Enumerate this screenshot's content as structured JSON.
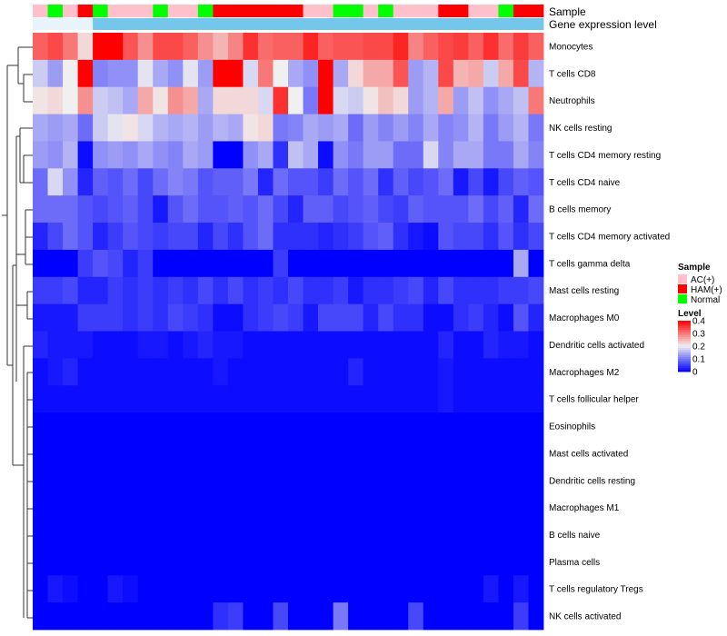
{
  "chart_data": {
    "type": "heatmap",
    "title": "",
    "rows": [
      "Monocytes",
      "T cells CD8",
      "Neutrophils",
      "NK cells resting",
      "T cells CD4 memory resting",
      "T cells CD4 naive",
      "B cells memory",
      "T cells CD4 memory activated",
      "T cells gamma delta",
      "Mast cells resting",
      "Macrophages M0",
      "Dendritic cells activated",
      "Macrophages M2",
      "T cells follicular helper",
      "Eosinophils",
      "Mast cells activated",
      "Dendritic cells resting",
      "Macrophages M1",
      "B cells naive",
      "Plasma cells",
      "T cells regulatory  Tregs",
      "NK cells activated"
    ],
    "column_annotations": [
      {
        "name": "Sample",
        "values": [
          "AC(+)",
          "Normal",
          "AC(+)",
          "HAM(+)",
          "Normal",
          "AC(+)",
          "AC(+)",
          "AC(+)",
          "Normal",
          "AC(+)",
          "AC(+)",
          "Normal",
          "HAM(+)",
          "HAM(+)",
          "HAM(+)",
          "HAM(+)",
          "HAM(+)",
          "HAM(+)",
          "AC(+)",
          "AC(+)",
          "Normal",
          "Normal",
          "AC(+)",
          "Normal",
          "AC(+)",
          "AC(+)",
          "AC(+)",
          "HAM(+)",
          "HAM(+)",
          "AC(+)",
          "AC(+)",
          "Normal",
          "HAM(+)",
          "HAM(+)"
        ]
      },
      {
        "name": "Gene expression level",
        "values": [
          "Low",
          "Low",
          "Low",
          "Low",
          "High",
          "High",
          "High",
          "High",
          "High",
          "High",
          "High",
          "High",
          "High",
          "High",
          "High",
          "High",
          "High",
          "High",
          "High",
          "High",
          "High",
          "High",
          "High",
          "High",
          "High",
          "High",
          "High",
          "High",
          "High",
          "High",
          "High",
          "High",
          "High",
          "High"
        ]
      }
    ],
    "legends": {
      "sample": {
        "title": "Sample",
        "entries": [
          {
            "label": "AC(+)",
            "color": "#ffc0cb"
          },
          {
            "label": "HAM(+)",
            "color": "#ff0000"
          },
          {
            "label": "Normal",
            "color": "#00ff00"
          }
        ]
      },
      "level": {
        "title": "Level",
        "ticks": [
          "0.4",
          "0.3",
          "0.2",
          "0.1",
          "0"
        ],
        "range": [
          0,
          0.4
        ],
        "colors": {
          "low": "#0000ff",
          "mid": "#f0f0f0",
          "high": "#ff0000"
        }
      }
    },
    "expression_level_colors": {
      "Low": "#e8f4fa",
      "High": "#74c6ea"
    },
    "values": [
      [
        0.32,
        0.34,
        0.3,
        0.22,
        0.4,
        0.4,
        0.33,
        0.28,
        0.34,
        0.34,
        0.32,
        0.28,
        0.25,
        0.29,
        0.36,
        0.31,
        0.32,
        0.32,
        0.37,
        0.32,
        0.33,
        0.33,
        0.34,
        0.34,
        0.37,
        0.29,
        0.32,
        0.34,
        0.35,
        0.32,
        0.36,
        0.31,
        0.35,
        0.32
      ],
      [
        0.17,
        0.13,
        0.2,
        0.4,
        0.11,
        0.12,
        0.12,
        0.19,
        0.14,
        0.12,
        0.19,
        0.13,
        0.4,
        0.4,
        0.18,
        0.3,
        0.2,
        0.14,
        0.12,
        0.4,
        0.14,
        0.22,
        0.26,
        0.26,
        0.33,
        0.13,
        0.15,
        0.34,
        0.25,
        0.26,
        0.17,
        0.26,
        0.34,
        0.15
      ],
      [
        0.21,
        0.22,
        0.2,
        0.28,
        0.17,
        0.16,
        0.14,
        0.26,
        0.21,
        0.28,
        0.26,
        0.14,
        0.22,
        0.22,
        0.22,
        0.18,
        0.36,
        0.2,
        0.1,
        0.4,
        0.18,
        0.17,
        0.21,
        0.24,
        0.22,
        0.13,
        0.15,
        0.26,
        0.13,
        0.16,
        0.12,
        0.14,
        0.16,
        0.3
      ],
      [
        0.14,
        0.13,
        0.14,
        0.09,
        0.17,
        0.19,
        0.21,
        0.18,
        0.15,
        0.14,
        0.15,
        0.13,
        0.15,
        0.14,
        0.21,
        0.22,
        0.1,
        0.11,
        0.14,
        0.13,
        0.14,
        0.09,
        0.13,
        0.11,
        0.13,
        0.11,
        0.14,
        0.11,
        0.12,
        0.15,
        0.1,
        0.13,
        0.15,
        0.1
      ],
      [
        0.13,
        0.12,
        0.15,
        0.01,
        0.12,
        0.13,
        0.12,
        0.14,
        0.12,
        0.11,
        0.14,
        0.13,
        0.0,
        0.0,
        0.12,
        0.14,
        0.04,
        0.16,
        0.14,
        0.01,
        0.12,
        0.1,
        0.13,
        0.13,
        0.09,
        0.09,
        0.18,
        0.11,
        0.14,
        0.14,
        0.1,
        0.1,
        0.14,
        0.11
      ],
      [
        0.09,
        0.18,
        0.12,
        0.03,
        0.08,
        0.07,
        0.09,
        0.06,
        0.09,
        0.11,
        0.1,
        0.07,
        0.08,
        0.08,
        0.1,
        0.03,
        0.09,
        0.07,
        0.07,
        0.05,
        0.09,
        0.07,
        0.09,
        0.04,
        0.08,
        0.06,
        0.07,
        0.09,
        0.02,
        0.06,
        0.02,
        0.06,
        0.08,
        0.07
      ],
      [
        0.09,
        0.09,
        0.09,
        0.07,
        0.06,
        0.07,
        0.08,
        0.06,
        0.02,
        0.07,
        0.09,
        0.07,
        0.07,
        0.08,
        0.07,
        0.09,
        0.06,
        0.03,
        0.08,
        0.08,
        0.06,
        0.07,
        0.08,
        0.06,
        0.05,
        0.08,
        0.07,
        0.07,
        0.07,
        0.09,
        0.06,
        0.08,
        0.03,
        0.09
      ],
      [
        0.03,
        0.06,
        0.09,
        0.07,
        0.03,
        0.05,
        0.07,
        0.06,
        0.05,
        0.06,
        0.06,
        0.03,
        0.06,
        0.04,
        0.07,
        0.09,
        0.04,
        0.04,
        0.04,
        0.03,
        0.04,
        0.05,
        0.07,
        0.08,
        0.04,
        0.02,
        0.01,
        0.07,
        0.06,
        0.06,
        0.04,
        0.07,
        0.04,
        0.06
      ],
      [
        0.0,
        0.0,
        0.0,
        0.05,
        0.07,
        0.06,
        0.03,
        0.05,
        0.0,
        0.0,
        0.0,
        0.0,
        0.0,
        0.0,
        0.0,
        0.0,
        0.05,
        0.0,
        0.0,
        0.0,
        0.0,
        0.0,
        0.0,
        0.0,
        0.0,
        0.0,
        0.0,
        0.0,
        0.0,
        0.0,
        0.0,
        0.0,
        0.14,
        0.0
      ],
      [
        0.05,
        0.05,
        0.06,
        0.03,
        0.03,
        0.05,
        0.04,
        0.05,
        0.04,
        0.05,
        0.04,
        0.06,
        0.04,
        0.06,
        0.04,
        0.05,
        0.04,
        0.06,
        0.04,
        0.04,
        0.05,
        0.02,
        0.04,
        0.04,
        0.05,
        0.06,
        0.03,
        0.06,
        0.04,
        0.04,
        0.04,
        0.05,
        0.05,
        0.06
      ],
      [
        0.02,
        0.02,
        0.02,
        0.05,
        0.05,
        0.05,
        0.04,
        0.05,
        0.04,
        0.06,
        0.05,
        0.04,
        0.01,
        0.01,
        0.04,
        0.05,
        0.06,
        0.05,
        0.02,
        0.06,
        0.06,
        0.06,
        0.03,
        0.06,
        0.04,
        0.04,
        0.01,
        0.01,
        0.04,
        0.05,
        0.03,
        0.01,
        0.07,
        0.03
      ],
      [
        0.03,
        0.02,
        0.02,
        0.02,
        0.01,
        0.01,
        0.01,
        0.02,
        0.02,
        0.01,
        0.02,
        0.03,
        0.02,
        0.02,
        0.01,
        0.01,
        0.01,
        0.01,
        0.01,
        0.01,
        0.01,
        0.01,
        0.01,
        0.01,
        0.01,
        0.01,
        0.01,
        0.03,
        0.01,
        0.01,
        0.03,
        0.02,
        0.02,
        0.01
      ],
      [
        0.01,
        0.02,
        0.03,
        0.01,
        0.01,
        0.01,
        0.01,
        0.01,
        0.01,
        0.01,
        0.01,
        0.01,
        0.02,
        0.01,
        0.01,
        0.01,
        0.01,
        0.01,
        0.01,
        0.01,
        0.01,
        0.03,
        0.01,
        0.01,
        0.01,
        0.01,
        0.01,
        0.02,
        0.01,
        0.01,
        0.01,
        0.01,
        0.01,
        0.01
      ],
      [
        0.01,
        0.01,
        0.01,
        0.01,
        0.01,
        0.01,
        0.01,
        0.01,
        0.01,
        0.01,
        0.01,
        0.01,
        0.01,
        0.01,
        0.01,
        0.01,
        0.01,
        0.01,
        0.01,
        0.01,
        0.01,
        0.01,
        0.01,
        0.01,
        0.01,
        0.01,
        0.01,
        0.02,
        0.01,
        0.01,
        0.01,
        0.01,
        0.01,
        0.01
      ],
      [
        0.0,
        0.0,
        0.0,
        0.0,
        0.0,
        0.0,
        0.0,
        0.0,
        0.0,
        0.0,
        0.0,
        0.0,
        0.0,
        0.0,
        0.0,
        0.0,
        0.0,
        0.0,
        0.0,
        0.0,
        0.0,
        0.0,
        0.0,
        0.0,
        0.0,
        0.0,
        0.0,
        0.0,
        0.0,
        0.0,
        0.0,
        0.0,
        0.0,
        0.0
      ],
      [
        0.0,
        0.0,
        0.0,
        0.0,
        0.0,
        0.0,
        0.0,
        0.0,
        0.0,
        0.0,
        0.0,
        0.0,
        0.0,
        0.0,
        0.0,
        0.0,
        0.0,
        0.0,
        0.0,
        0.0,
        0.0,
        0.0,
        0.0,
        0.0,
        0.0,
        0.0,
        0.0,
        0.0,
        0.0,
        0.0,
        0.0,
        0.0,
        0.0,
        0.0
      ],
      [
        0.0,
        0.0,
        0.0,
        0.0,
        0.0,
        0.0,
        0.0,
        0.0,
        0.0,
        0.0,
        0.0,
        0.0,
        0.0,
        0.0,
        0.0,
        0.0,
        0.0,
        0.0,
        0.0,
        0.0,
        0.0,
        0.0,
        0.0,
        0.0,
        0.0,
        0.0,
        0.0,
        0.0,
        0.0,
        0.0,
        0.0,
        0.0,
        0.0,
        0.0
      ],
      [
        0.0,
        0.0,
        0.0,
        0.0,
        0.0,
        0.0,
        0.0,
        0.0,
        0.0,
        0.0,
        0.0,
        0.0,
        0.0,
        0.0,
        0.0,
        0.0,
        0.0,
        0.0,
        0.0,
        0.0,
        0.0,
        0.0,
        0.0,
        0.0,
        0.0,
        0.0,
        0.0,
        0.0,
        0.0,
        0.0,
        0.0,
        0.0,
        0.0,
        0.0
      ],
      [
        0.0,
        0.0,
        0.0,
        0.0,
        0.0,
        0.0,
        0.0,
        0.0,
        0.0,
        0.0,
        0.0,
        0.0,
        0.0,
        0.0,
        0.0,
        0.0,
        0.0,
        0.0,
        0.0,
        0.0,
        0.0,
        0.0,
        0.0,
        0.0,
        0.0,
        0.0,
        0.0,
        0.0,
        0.0,
        0.0,
        0.0,
        0.0,
        0.0,
        0.0
      ],
      [
        0.0,
        0.0,
        0.0,
        0.0,
        0.0,
        0.0,
        0.0,
        0.0,
        0.0,
        0.0,
        0.0,
        0.0,
        0.0,
        0.0,
        0.0,
        0.0,
        0.0,
        0.0,
        0.0,
        0.0,
        0.0,
        0.0,
        0.0,
        0.0,
        0.0,
        0.0,
        0.0,
        0.0,
        0.0,
        0.0,
        0.0,
        0.0,
        0.0,
        0.0
      ],
      [
        0.0,
        0.02,
        0.01,
        0.0,
        0.0,
        0.02,
        0.01,
        0.0,
        0.0,
        0.0,
        0.0,
        0.0,
        0.0,
        0.0,
        0.0,
        0.0,
        0.0,
        0.0,
        0.0,
        0.0,
        0.0,
        0.0,
        0.0,
        0.0,
        0.0,
        0.0,
        0.0,
        0.0,
        0.0,
        0.0,
        0.02,
        0.0,
        0.02,
        0.0
      ],
      [
        0.0,
        0.0,
        0.0,
        0.0,
        0.0,
        0.0,
        0.0,
        0.0,
        0.0,
        0.0,
        0.0,
        0.0,
        0.04,
        0.05,
        0.0,
        0.0,
        0.06,
        0.0,
        0.0,
        0.0,
        0.1,
        0.0,
        0.0,
        0.0,
        0.0,
        0.06,
        0.0,
        0.0,
        0.0,
        0.0,
        0.0,
        0.0,
        0.05,
        0.0
      ]
    ]
  }
}
